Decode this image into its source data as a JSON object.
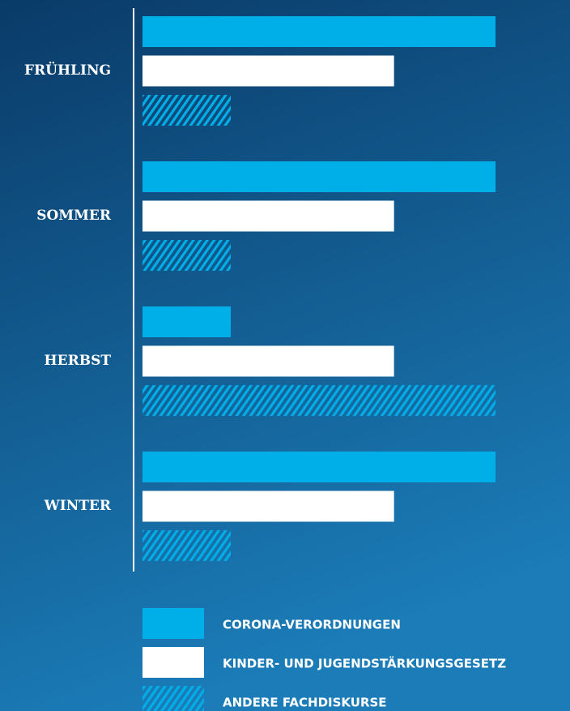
{
  "chart_data": {
    "type": "barh",
    "categories": [
      "FRÜHLING",
      "SOMMER",
      "HERBST",
      "WINTER"
    ],
    "series": [
      {
        "name": "CORONA-VERORDNUNGEN",
        "color": "#00aee8",
        "values": [
          4,
          4,
          1,
          4
        ]
      },
      {
        "name": "KINDER- UND JUGENDSTÄRKUNGSGESETZ",
        "color": "#ffffff",
        "values": [
          2.85,
          2.85,
          2.85,
          2.85
        ]
      },
      {
        "name": "ANDERE FACHDISKURSE",
        "color": "#00aee8",
        "pattern": "hatch",
        "values": [
          1,
          1,
          4,
          1
        ]
      }
    ],
    "xlim": [
      0,
      4
    ]
  }
}
